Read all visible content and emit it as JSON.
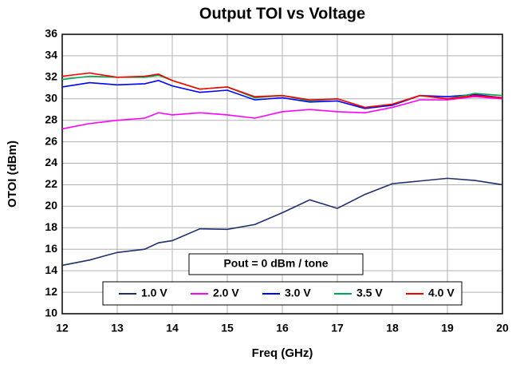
{
  "chart_data": {
    "type": "line",
    "title": "Output TOI vs Voltage",
    "xlabel": "Freq (GHz)",
    "ylabel": "OTOI (dBm)",
    "annotation": "Pout = 0 dBm / tone",
    "x": [
      12,
      12.5,
      13,
      13.5,
      13.75,
      14,
      14.5,
      15,
      15.5,
      16,
      16.5,
      17,
      17.5,
      18,
      18.5,
      19,
      19.5,
      20
    ],
    "series": [
      {
        "name": "1.0 V",
        "color": "#1f2f6e",
        "values": [
          14.5,
          15.0,
          15.7,
          16.0,
          16.6,
          16.8,
          17.9,
          17.85,
          18.3,
          19.4,
          20.6,
          19.8,
          21.1,
          22.1,
          22.35,
          22.6,
          22.4,
          22.0
        ]
      },
      {
        "name": "2.0 V",
        "color": "#ff00ff",
        "values": [
          27.2,
          27.7,
          28.0,
          28.2,
          28.7,
          28.5,
          28.7,
          28.5,
          28.2,
          28.8,
          29.0,
          28.8,
          28.7,
          29.2,
          29.9,
          29.9,
          30.2,
          30.0
        ]
      },
      {
        "name": "3.0 V",
        "color": "#0000ff",
        "values": [
          31.1,
          31.5,
          31.3,
          31.4,
          31.7,
          31.2,
          30.6,
          30.8,
          29.9,
          30.1,
          29.7,
          29.8,
          29.1,
          29.4,
          30.3,
          30.2,
          30.4,
          30.1
        ]
      },
      {
        "name": "3.5 V",
        "color": "#00a651",
        "values": [
          31.8,
          32.1,
          32.0,
          32.0,
          32.2,
          31.7,
          30.9,
          31.1,
          30.1,
          30.3,
          29.8,
          30.0,
          29.2,
          29.5,
          30.3,
          30.0,
          30.5,
          30.3
        ]
      },
      {
        "name": "4.0 V",
        "color": "#ff0000",
        "values": [
          32.1,
          32.4,
          32.0,
          32.1,
          32.3,
          31.7,
          30.9,
          31.1,
          30.2,
          30.3,
          29.9,
          30.0,
          29.2,
          29.5,
          30.3,
          30.0,
          30.3,
          30.1
        ]
      }
    ],
    "xlim": [
      12,
      20
    ],
    "xticks": [
      12,
      13,
      14,
      15,
      16,
      17,
      18,
      19,
      20
    ],
    "ylim": [
      10,
      36
    ],
    "yticks": [
      10,
      12,
      14,
      16,
      18,
      20,
      22,
      24,
      26,
      28,
      30,
      32,
      34,
      36
    ],
    "grid": true,
    "legend": "lower center"
  }
}
